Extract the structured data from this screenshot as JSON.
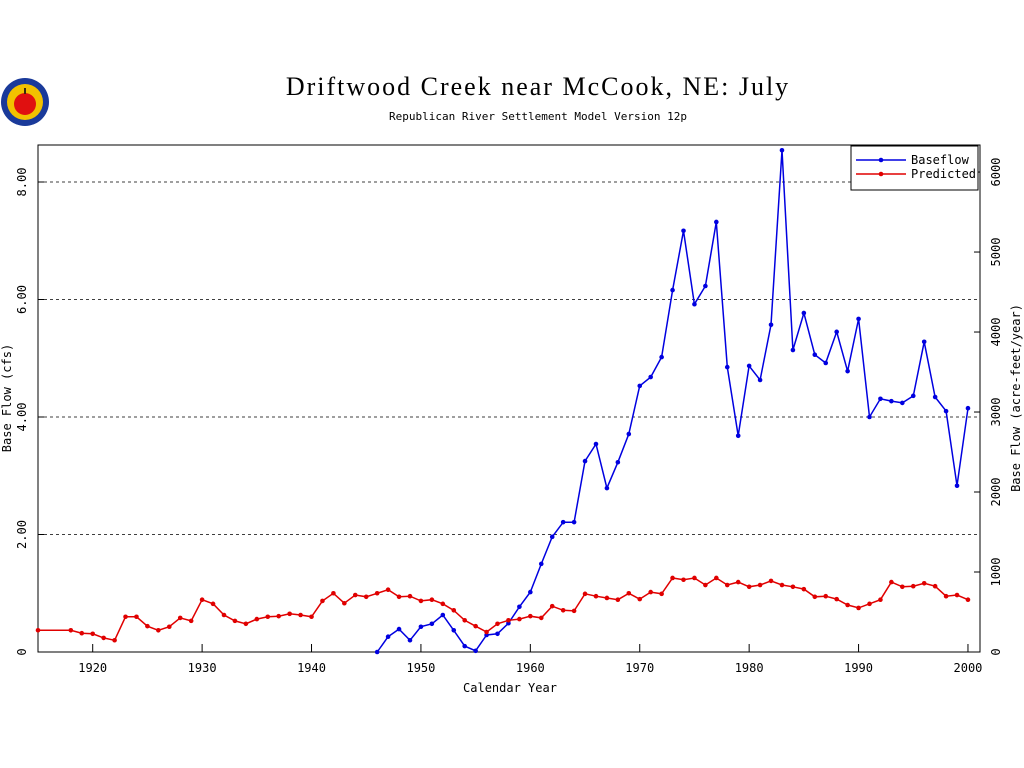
{
  "chart_data": {
    "type": "line",
    "title": "Driftwood Creek near McCook, NE: July",
    "subtitle": "Republican River Settlement Model Version 12p",
    "xlabel": "Calendar Year",
    "ylabel": "Base Flow (cfs)",
    "y2label": "Base Flow (acre-feet/year)",
    "xlim": [
      1915,
      2001.1
    ],
    "ylim": [
      0,
      8.63
    ],
    "y2lim": [
      0,
      6338
    ],
    "xticks": [
      1920,
      1930,
      1940,
      1950,
      1960,
      1970,
      1980,
      1990,
      2000
    ],
    "yticks": [
      0,
      {
        "value": 2,
        "label": "2.00"
      },
      {
        "value": 4,
        "label": "4.00"
      },
      {
        "value": 6,
        "label": "6.00"
      },
      {
        "value": 8,
        "label": "8.00"
      }
    ],
    "y2ticks": [
      0,
      1000,
      2000,
      3000,
      4000,
      5000,
      6000
    ],
    "grid": true,
    "legend": "upper right",
    "series": [
      {
        "name": "Baseflow",
        "color": "#0000e0",
        "x": [
          1946,
          1947,
          1948,
          1949,
          1950,
          1951,
          1952,
          1953,
          1954,
          1955,
          1956,
          1957,
          1958,
          1959,
          1960,
          1961,
          1962,
          1963,
          1964,
          1965,
          1966,
          1967,
          1968,
          1969,
          1970,
          1971,
          1972,
          1973,
          1974,
          1975,
          1976,
          1977,
          1978,
          1979,
          1980,
          1981,
          1982,
          1983,
          1984,
          1985,
          1986,
          1987,
          1988,
          1989,
          1990,
          1991,
          1992,
          1993,
          1994,
          1995,
          1996,
          1997,
          1998,
          1999,
          2000
        ],
        "values": [
          0,
          0.26,
          0.39,
          0.2,
          0.43,
          0.48,
          0.63,
          0.37,
          0.1,
          0.02,
          0.29,
          0.31,
          0.49,
          0.77,
          1.02,
          1.5,
          1.96,
          2.21,
          2.21,
          3.25,
          3.54,
          2.79,
          3.23,
          3.71,
          4.53,
          4.68,
          5.02,
          6.16,
          7.17,
          5.92,
          6.23,
          7.32,
          4.85,
          3.68,
          4.87,
          4.63,
          5.57,
          8.54,
          5.14,
          5.77,
          5.06,
          4.92,
          5.45,
          4.78,
          5.67,
          4.0,
          4.31,
          4.27,
          4.24,
          4.36,
          5.28,
          4.34,
          4.1,
          2.83,
          4.15
        ]
      },
      {
        "name": "Predicted",
        "color": "#e00000",
        "x": [
          1915,
          1918,
          1919,
          1920,
          1921,
          1922,
          1923,
          1924,
          1925,
          1926,
          1927,
          1928,
          1929,
          1930,
          1931,
          1932,
          1933,
          1934,
          1935,
          1936,
          1937,
          1938,
          1939,
          1940,
          1941,
          1942,
          1943,
          1944,
          1945,
          1946,
          1947,
          1948,
          1949,
          1950,
          1951,
          1952,
          1953,
          1954,
          1955,
          1956,
          1957,
          1958,
          1959,
          1960,
          1961,
          1962,
          1963,
          1964,
          1965,
          1966,
          1967,
          1968,
          1969,
          1970,
          1971,
          1972,
          1973,
          1974,
          1975,
          1976,
          1977,
          1978,
          1979,
          1980,
          1981,
          1982,
          1983,
          1984,
          1985,
          1986,
          1987,
          1988,
          1989,
          1990,
          1991,
          1992,
          1993,
          1994,
          1995,
          1996,
          1997,
          1998,
          1999,
          2000
        ],
        "values": [
          0.37,
          0.37,
          0.32,
          0.31,
          0.24,
          0.2,
          0.6,
          0.6,
          0.44,
          0.37,
          0.43,
          0.58,
          0.53,
          0.89,
          0.82,
          0.63,
          0.53,
          0.48,
          0.56,
          0.6,
          0.61,
          0.65,
          0.63,
          0.6,
          0.87,
          1.0,
          0.83,
          0.97,
          0.94,
          1.0,
          1.06,
          0.94,
          0.95,
          0.87,
          0.89,
          0.82,
          0.71,
          0.54,
          0.44,
          0.34,
          0.48,
          0.54,
          0.56,
          0.61,
          0.58,
          0.78,
          0.71,
          0.7,
          0.99,
          0.95,
          0.92,
          0.89,
          1.0,
          0.9,
          1.02,
          0.99,
          1.26,
          1.23,
          1.26,
          1.14,
          1.26,
          1.14,
          1.19,
          1.11,
          1.14,
          1.21,
          1.14,
          1.11,
          1.07,
          0.94,
          0.95,
          0.9,
          0.8,
          0.75,
          0.82,
          0.89,
          1.19,
          1.11,
          1.12,
          1.17,
          1.12,
          0.95,
          0.97,
          0.89
        ]
      }
    ]
  }
}
